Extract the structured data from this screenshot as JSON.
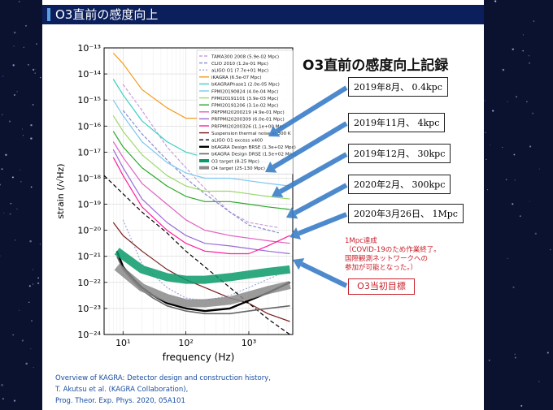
{
  "header": {
    "title": "O3直前の感度向上"
  },
  "record_title": "O3直前の感度向上記録",
  "callouts": [
    "2019年8月、 0.4kpc",
    "2019年11月、 4kpc",
    "2019年12月、 30kpc",
    "2020年2月、 300kpc",
    "2020年3月26日、 1Mpc"
  ],
  "note": [
    "1Mpc達成",
    "（COVID-19のため作業終了。",
    "国際観測ネットワークへの",
    "参加が可能となった。）"
  ],
  "o3_target": "O3当初目標",
  "credits": [
    "Overview of KAGRA: Detector design and construction history,",
    "T. Akutsu et al. (KAGRA Collaboration),",
    "Prog. Theor. Exp. Phys. 2020, 05A101"
  ],
  "chart_data": {
    "type": "line",
    "xlabel": "frequency (Hz)",
    "ylabel": "strain (/√Hz)",
    "x_scale": "log",
    "y_scale": "log",
    "xlim": [
      5,
      5000
    ],
    "ylim": [
      1e-24,
      1e-13
    ],
    "x_ticks": [
      {
        "value": 10,
        "label": "10¹"
      },
      {
        "value": 100,
        "label": "10²"
      },
      {
        "value": 1000,
        "label": "10³"
      }
    ],
    "y_ticks": [
      {
        "value": -13,
        "label": "10⁻¹³"
      },
      {
        "value": -14,
        "label": "10⁻¹⁴"
      },
      {
        "value": -15,
        "label": "10⁻¹⁵"
      },
      {
        "value": -16,
        "label": "10⁻¹⁶"
      },
      {
        "value": -17,
        "label": "10⁻¹⁷"
      },
      {
        "value": -18,
        "label": "10⁻¹⁸"
      },
      {
        "value": -19,
        "label": "10⁻¹⁹"
      },
      {
        "value": -20,
        "label": "10⁻²⁰"
      },
      {
        "value": -21,
        "label": "10⁻²¹"
      },
      {
        "value": -22,
        "label": "10⁻²²"
      },
      {
        "value": -23,
        "label": "10⁻²³"
      },
      {
        "value": -24,
        "label": "10⁻²⁴"
      }
    ],
    "legend_placement": "top-right",
    "series": [
      {
        "name": "TAMA300 2008 (5.9e-02 Mpc)",
        "color": "#c9a0d8",
        "dash": "4,2",
        "x": [
          10,
          20,
          50,
          100,
          200,
          500,
          1000,
          3000
        ],
        "y": [
          -14.4,
          -15.4,
          -16.8,
          -17.6,
          -18.4,
          -19.3,
          -19.7,
          -19.9
        ]
      },
      {
        "name": "CLIO 2010 (1.2e-01 Mpc)",
        "color": "#8a8ad0",
        "dash": "4,2",
        "x": [
          10,
          20,
          50,
          100,
          200,
          500,
          1000,
          3000
        ],
        "y": [
          -15.4,
          -16.3,
          -17.3,
          -18.0,
          -18.6,
          -19.3,
          -19.8,
          -20.1
        ]
      },
      {
        "name": "aLIGO O1 (7.7e+01 Mpc)",
        "color": "#a0a8e0",
        "dash": "2,2",
        "x": [
          10,
          20,
          50,
          100,
          200,
          500,
          1000,
          3000
        ],
        "y": [
          -19.6,
          -21.3,
          -22.2,
          -22.6,
          -22.7,
          -22.5,
          -22.2,
          -21.7
        ]
      },
      {
        "name": "iKAGRA (6.5e-07 Mpc)",
        "color": "#f39a1a",
        "x": [
          7,
          10,
          20,
          50,
          100,
          200,
          500,
          1000,
          2000,
          4500
        ],
        "y": [
          -13.2,
          -13.6,
          -14.6,
          -15.3,
          -15.7,
          -15.7,
          -15.8,
          -16.0,
          -16.2,
          -16.3
        ]
      },
      {
        "name": "bKAGRAPhase1 (2.0e-05 Mpc)",
        "color": "#3ad0c4",
        "x": [
          7,
          10,
          20,
          50,
          100,
          200,
          500,
          1000,
          2000,
          4500
        ],
        "y": [
          -14.2,
          -14.8,
          -15.8,
          -16.6,
          -17.0,
          -17.2,
          -17.2,
          -17.3,
          -17.4,
          -17.5
        ]
      },
      {
        "name": "FPMI20190824 (4.0e-04 Mpc)",
        "color": "#7ec8f0",
        "x": [
          7,
          10,
          20,
          50,
          100,
          200,
          500,
          1000,
          2000,
          4500
        ],
        "y": [
          -15.0,
          -15.6,
          -16.6,
          -17.4,
          -17.8,
          -18.0,
          -18.0,
          -18.1,
          -18.2,
          -18.3
        ]
      },
      {
        "name": "FPMI20191101 (3.9e-03 Mpc)",
        "color": "#9ad86a",
        "x": [
          7,
          10,
          20,
          50,
          100,
          200,
          500,
          1000,
          2000,
          4500
        ],
        "y": [
          -15.6,
          -16.2,
          -17.1,
          -17.9,
          -18.3,
          -18.5,
          -18.5,
          -18.6,
          -18.7,
          -18.8
        ]
      },
      {
        "name": "FPMI20191206 (3.1e-02 Mpc)",
        "color": "#2aa82a",
        "x": [
          7,
          10,
          20,
          50,
          100,
          200,
          500,
          1000,
          2000,
          4500
        ],
        "y": [
          -16.2,
          -16.8,
          -17.6,
          -18.3,
          -18.7,
          -18.9,
          -18.9,
          -19.0,
          -19.1,
          -19.2
        ]
      },
      {
        "name": "PRFPMI20200219 (4.9e-01 Mpc)",
        "color": "#e060c0",
        "x": [
          7,
          10,
          20,
          50,
          100,
          200,
          500,
          1000,
          2000,
          4500
        ],
        "y": [
          -16.6,
          -17.2,
          -18.2,
          -19.0,
          -19.6,
          -20.0,
          -20.2,
          -20.3,
          -20.4,
          -20.5
        ]
      },
      {
        "name": "PRFPMI20200309 (6.0e-01 Mpc)",
        "color": "#9a6ad8",
        "x": [
          7,
          10,
          20,
          50,
          100,
          200,
          500,
          1000,
          2000,
          4500
        ],
        "y": [
          -16.9,
          -17.6,
          -18.8,
          -19.7,
          -20.2,
          -20.5,
          -20.6,
          -20.7,
          -20.8,
          -20.9
        ]
      },
      {
        "name": "PRFPMI20200326 (1.1e+00 Mpc)",
        "color": "#ff1e9a",
        "x": [
          7,
          10,
          20,
          50,
          100,
          200,
          500,
          1000,
          2000,
          4500
        ],
        "y": [
          -17.2,
          -17.9,
          -19.1,
          -20.0,
          -20.5,
          -20.8,
          -20.9,
          -20.9,
          -20.6,
          -20.2
        ]
      },
      {
        "name": "Suspension thermal noise at 300 K",
        "color": "#7a1e1e",
        "x": [
          7,
          10,
          20,
          50,
          100,
          200,
          500,
          1000,
          2000,
          4500
        ],
        "y": [
          -19.7,
          -20.2,
          -20.8,
          -21.5,
          -21.9,
          -22.2,
          -22.6,
          -22.8,
          -23.2,
          -23.5
        ]
      },
      {
        "name": "aLIGO O1 excess x400",
        "color": "#000000",
        "dash": "5,3",
        "x": [
          5,
          10,
          20,
          50,
          100,
          200,
          500,
          1000,
          2000,
          4500
        ],
        "y": [
          -17.9,
          -18.6,
          -19.3,
          -20.1,
          -20.8,
          -21.4,
          -22.2,
          -22.8,
          -23.4,
          -24.0
        ]
      },
      {
        "name": "bKAGRA Design BRSE (1.3e+02 Mpc)",
        "color": "#000000",
        "width": 2.4,
        "x": [
          8,
          10,
          15,
          20,
          30,
          50,
          100,
          200,
          500,
          1000,
          2000,
          4500
        ],
        "y": [
          -20.8,
          -21.4,
          -21.9,
          -22.2,
          -22.5,
          -22.8,
          -23.0,
          -23.1,
          -23.0,
          -22.7,
          -22.4,
          -22.0
        ]
      },
      {
        "name": "bKAGRA Design DRSE (1.5e+02 Mpc)",
        "color": "#666666",
        "width": 1.6,
        "x": [
          8,
          10,
          15,
          20,
          30,
          50,
          100,
          200,
          500,
          1000,
          2000,
          4500
        ],
        "y": [
          -21.0,
          -21.5,
          -22.0,
          -22.3,
          -22.6,
          -22.9,
          -23.1,
          -23.2,
          -23.2,
          -23.1,
          -23.0,
          -22.9
        ]
      },
      {
        "name": "O3 target (8-25 Mpc)",
        "color": "#0a9a6a",
        "width": 10,
        "x": [
          8,
          20,
          50,
          100,
          200,
          500,
          1000,
          2000,
          4500
        ],
        "y": [
          -20.8,
          -21.5,
          -21.8,
          -21.9,
          -21.9,
          -21.8,
          -21.7,
          -21.6,
          -21.5
        ]
      },
      {
        "name": "O4 target (25-130 Mpc)",
        "color": "#8a8a8a",
        "width": 10,
        "x": [
          8,
          20,
          50,
          100,
          200,
          500,
          1000,
          2000,
          4500
        ],
        "y": [
          -21.4,
          -22.2,
          -22.6,
          -22.8,
          -22.8,
          -22.7,
          -22.5,
          -22.3,
          -22.1
        ]
      }
    ]
  }
}
